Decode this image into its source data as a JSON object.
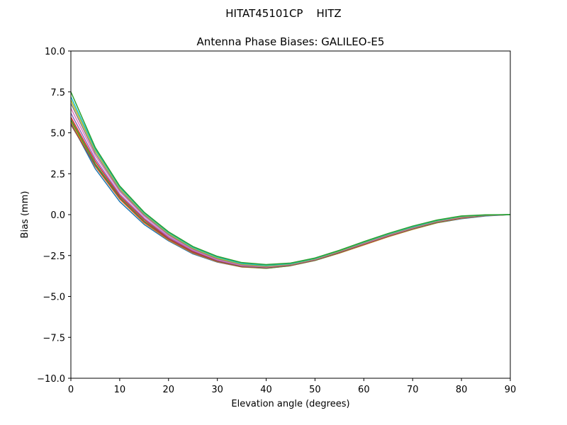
{
  "figure": {
    "suptitle": "HITAT45101CP    HITZ"
  },
  "chart_data": {
    "type": "line",
    "title": "Antenna Phase Biases: GALILEO-E5",
    "xlabel": "Elevation angle (degrees)",
    "ylabel": "Bias (mm)",
    "xlim": [
      0,
      90
    ],
    "ylim": [
      -10,
      10
    ],
    "x_ticks": [
      0,
      10,
      20,
      30,
      40,
      50,
      60,
      70,
      80,
      90
    ],
    "y_ticks": [
      -10.0,
      -7.5,
      -5.0,
      -2.5,
      0.0,
      2.5,
      5.0,
      7.5,
      10.0
    ],
    "x_tick_labels": [
      "0",
      "10",
      "20",
      "30",
      "40",
      "50",
      "60",
      "70",
      "80",
      "90"
    ],
    "y_tick_labels": [
      "−10.0",
      "−7.5",
      "−5.0",
      "−2.5",
      "0.0",
      "2.5",
      "5.0",
      "7.5",
      "10.0"
    ],
    "grid": false,
    "legend": "none",
    "x": [
      0,
      5,
      10,
      15,
      20,
      25,
      30,
      35,
      40,
      45,
      50,
      55,
      60,
      65,
      70,
      75,
      80,
      85,
      90
    ],
    "series": [
      {
        "color": "#1f77b4",
        "values": [
          5.6,
          2.8,
          0.8,
          -0.6,
          -1.6,
          -2.4,
          -2.9,
          -3.2,
          -3.25,
          -3.1,
          -2.8,
          -2.35,
          -1.85,
          -1.35,
          -0.9,
          -0.5,
          -0.25,
          -0.08,
          0.0
        ]
      },
      {
        "color": "#ff7f0e",
        "values": [
          5.7,
          2.95,
          0.95,
          -0.5,
          -1.55,
          -2.35,
          -2.88,
          -3.2,
          -3.28,
          -3.12,
          -2.8,
          -2.35,
          -1.85,
          -1.35,
          -0.9,
          -0.5,
          -0.22,
          -0.06,
          0.0
        ]
      },
      {
        "color": "#2ca02c",
        "values": [
          5.8,
          3.1,
          1.05,
          -0.4,
          -1.5,
          -2.3,
          -2.85,
          -3.18,
          -3.28,
          -3.12,
          -2.8,
          -2.33,
          -1.82,
          -1.32,
          -0.88,
          -0.48,
          -0.2,
          -0.05,
          0.0
        ]
      },
      {
        "color": "#d62728",
        "values": [
          5.95,
          3.25,
          1.15,
          -0.3,
          -1.45,
          -2.25,
          -2.82,
          -3.15,
          -3.25,
          -3.1,
          -2.78,
          -2.3,
          -1.8,
          -1.3,
          -0.85,
          -0.45,
          -0.18,
          -0.04,
          0.0
        ]
      },
      {
        "color": "#9467bd",
        "values": [
          6.2,
          3.4,
          1.25,
          -0.22,
          -1.38,
          -2.2,
          -2.78,
          -3.12,
          -3.22,
          -3.08,
          -2.76,
          -2.28,
          -1.78,
          -1.28,
          -0.83,
          -0.43,
          -0.17,
          -0.04,
          0.0
        ]
      },
      {
        "color": "#8c564b",
        "values": [
          5.5,
          3.0,
          1.0,
          -0.45,
          -1.5,
          -2.32,
          -2.86,
          -3.18,
          -3.26,
          -3.1,
          -2.78,
          -2.32,
          -1.82,
          -1.32,
          -0.86,
          -0.46,
          -0.2,
          -0.05,
          0.0
        ]
      },
      {
        "color": "#e377c2",
        "values": [
          6.5,
          3.6,
          1.4,
          -0.1,
          -1.3,
          -2.15,
          -2.75,
          -3.1,
          -3.2,
          -3.06,
          -2.74,
          -2.26,
          -1.76,
          -1.26,
          -0.82,
          -0.42,
          -0.16,
          -0.03,
          0.0
        ]
      },
      {
        "color": "#7f7f7f",
        "values": [
          6.8,
          3.75,
          1.5,
          -0.02,
          -1.22,
          -2.1,
          -2.7,
          -3.06,
          -3.17,
          -3.04,
          -2.72,
          -2.24,
          -1.73,
          -1.23,
          -0.79,
          -0.4,
          -0.14,
          -0.03,
          0.0
        ]
      },
      {
        "color": "#bcbd22",
        "values": [
          7.0,
          3.9,
          1.6,
          0.05,
          -1.15,
          -2.05,
          -2.65,
          -3.02,
          -3.14,
          -3.02,
          -2.7,
          -2.22,
          -1.7,
          -1.2,
          -0.76,
          -0.38,
          -0.12,
          -0.02,
          0.0
        ]
      },
      {
        "color": "#17becf",
        "values": [
          7.2,
          4.0,
          1.68,
          0.1,
          -1.1,
          -2.0,
          -2.6,
          -2.98,
          -3.1,
          -3.0,
          -2.68,
          -2.2,
          -1.68,
          -1.18,
          -0.74,
          -0.36,
          -0.1,
          -0.02,
          0.0
        ]
      },
      {
        "color": "#2ca02c",
        "values": [
          7.5,
          4.1,
          1.75,
          0.15,
          -1.05,
          -1.95,
          -2.55,
          -2.93,
          -3.05,
          -2.96,
          -2.65,
          -2.18,
          -1.65,
          -1.15,
          -0.7,
          -0.33,
          -0.08,
          -0.01,
          0.0
        ]
      }
    ]
  }
}
